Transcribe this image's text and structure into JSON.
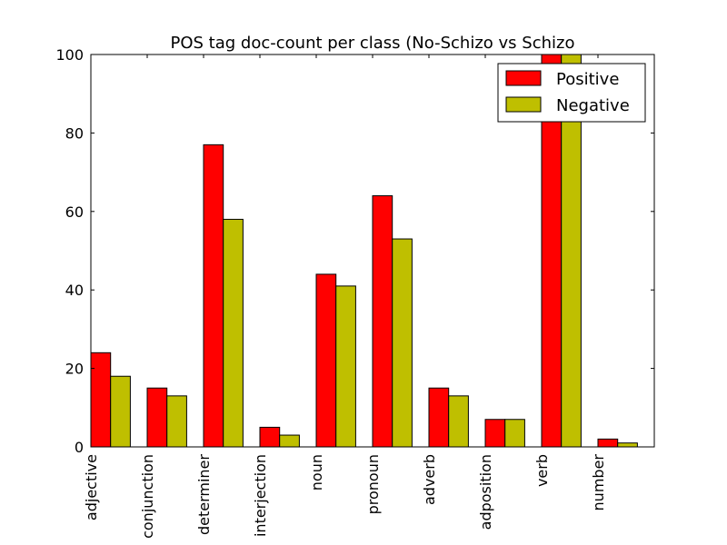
{
  "chart_data": {
    "type": "bar",
    "title": "POS tag doc-count per class (No-Schizo vs Schizo",
    "xlabel": "",
    "ylabel": "",
    "ylim": [
      0,
      100
    ],
    "yticks": [
      0,
      20,
      40,
      60,
      80,
      100
    ],
    "grid": false,
    "legend_position": "top-right",
    "categories": [
      "adjective",
      "conjunction",
      "determiner",
      "interjection",
      "noun",
      "pronoun",
      "adverb",
      "adposition",
      "verb",
      "number"
    ],
    "series": [
      {
        "name": "Positive",
        "color": "#ff0000",
        "values": [
          24,
          15,
          77,
          5,
          44,
          64,
          15,
          7,
          100,
          2
        ]
      },
      {
        "name": "Negative",
        "color": "#bfbf00",
        "values": [
          18,
          13,
          58,
          3,
          41,
          53,
          13,
          7,
          100,
          1
        ]
      }
    ]
  }
}
